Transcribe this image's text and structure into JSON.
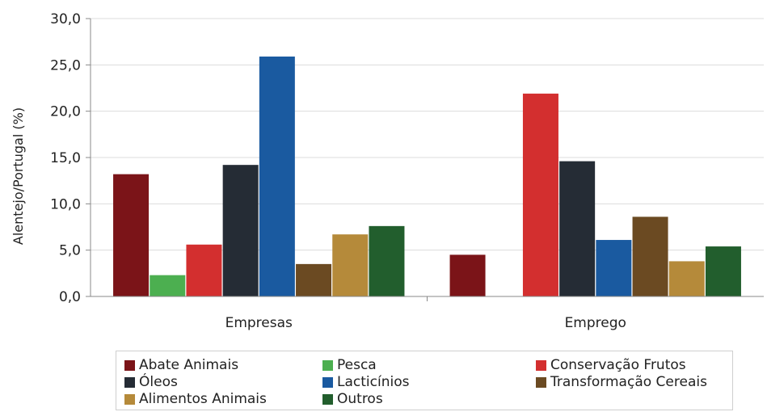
{
  "chart_data": {
    "type": "bar",
    "categories": [
      "Empresas",
      "Emprego"
    ],
    "ylabel": "Alentejo/Portugal (%)",
    "xlabel": "",
    "ylim": [
      0,
      30
    ],
    "yticks": [
      "0,0",
      "5,0",
      "10,0",
      "15,0",
      "20,0",
      "25,0",
      "30,0"
    ],
    "grid": true,
    "legend_position": "bottom",
    "series": [
      {
        "name": "Abate Animais",
        "color": "#7b1418",
        "values": [
          13.2,
          4.5
        ]
      },
      {
        "name": "Pesca",
        "color": "#4caf50",
        "values": [
          2.3,
          0
        ]
      },
      {
        "name": "Conservação Frutos",
        "color": "#d32f2f",
        "values": [
          5.6,
          21.9
        ]
      },
      {
        "name": "Óleos",
        "color": "#252c35",
        "values": [
          14.2,
          14.6
        ]
      },
      {
        "name": "Lacticínios",
        "color": "#1a5aa0",
        "values": [
          25.9,
          6.1
        ]
      },
      {
        "name": "Transformação Cereais",
        "color": "#6b4a22",
        "values": [
          3.5,
          8.6
        ]
      },
      {
        "name": "Alimentos Animais",
        "color": "#b58a3a",
        "values": [
          6.7,
          3.8
        ]
      },
      {
        "name": "Outros",
        "color": "#225e2d",
        "values": [
          7.6,
          5.4
        ]
      }
    ]
  }
}
